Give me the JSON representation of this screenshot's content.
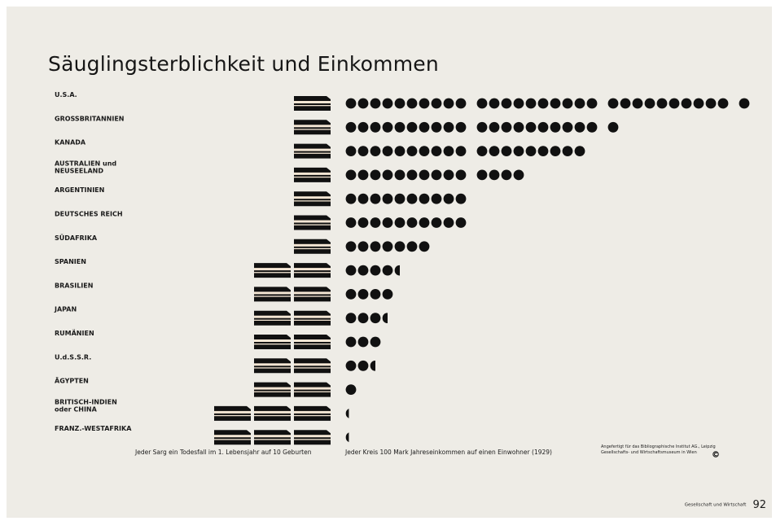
{
  "colors": {
    "background": "#eeece6",
    "coffin": "#e07a30",
    "coffin_detail": "#f4e6d4",
    "circle": "#111111",
    "text": "#1a1a1a"
  },
  "chart_data": {
    "type": "pictogram",
    "title": "Säuglingsterblichkeit und Einkommen",
    "series": [
      {
        "name": "Jeder Sarg ein Todesfall im 1. Lebensjahr auf 10 Geburten",
        "key": "deaths"
      },
      {
        "name": "Jeder Kreis 100 Mark Jahreseinkommen auf einen Einwohner (1929)",
        "key": "income"
      }
    ],
    "rows": [
      {
        "label": [
          "U.S.A."
        ],
        "deaths": 4.1,
        "income": 31
      },
      {
        "label": [
          "GROSSBRITANNIEN"
        ],
        "deaths": 4.3,
        "income": 21
      },
      {
        "label": [
          "KANADA"
        ],
        "deaths": 4.0,
        "income": 19
      },
      {
        "label": [
          "AUSTRALIEN und",
          "NEUSEELAND"
        ],
        "deaths": 4.3,
        "income": 14
      },
      {
        "label": [
          "ARGENTINIEN"
        ],
        "deaths": 4.0,
        "income": 10
      },
      {
        "label": [
          "DEUTSCHES REICH"
        ],
        "deaths": 4.0,
        "income": 10
      },
      {
        "label": [
          "SÜDAFRIKA"
        ],
        "deaths": 4.1,
        "income": 7
      },
      {
        "label": [
          "SPANIEN"
        ],
        "deaths": 3.5,
        "income": 4.5
      },
      {
        "label": [
          "BRASILIEN"
        ],
        "deaths": 3.5,
        "income": 4
      },
      {
        "label": [
          "JAPAN"
        ],
        "deaths": 3.5,
        "income": 3.5
      },
      {
        "label": [
          "RUMÄNIEN"
        ],
        "deaths": 3.1,
        "income": 3
      },
      {
        "label": [
          "U.d.S.S.R."
        ],
        "deaths": 3.1,
        "income": 2.5
      },
      {
        "label": [
          "ÄGYPTEN"
        ],
        "deaths": 3.5,
        "income": 1
      },
      {
        "label": [
          "BRITISCH-INDIEN",
          "oder CHINA"
        ],
        "deaths": 2.4,
        "income": 0.3
      },
      {
        "label": [
          "FRANZ.-WESTAFRIKA"
        ],
        "deaths": 2.0,
        "income": 0.3
      }
    ]
  },
  "caption_deaths": "Jeder Sarg ein Todesfall im 1. Lebensjahr auf 10 Geburten",
  "caption_income": "Jeder Kreis 100 Mark Jahreseinkommen auf einen Einwohner (1929)",
  "credit": {
    "line1": "Angefertigt für das Bibliographische Institut AG., Leipzig",
    "line2": "Gesellschafts- und Wirtschaftsmuseum in Wien",
    "icon": "copyright-icon"
  },
  "footer": {
    "book": "Gesellschaft und Wirtschaft",
    "page": "92"
  }
}
